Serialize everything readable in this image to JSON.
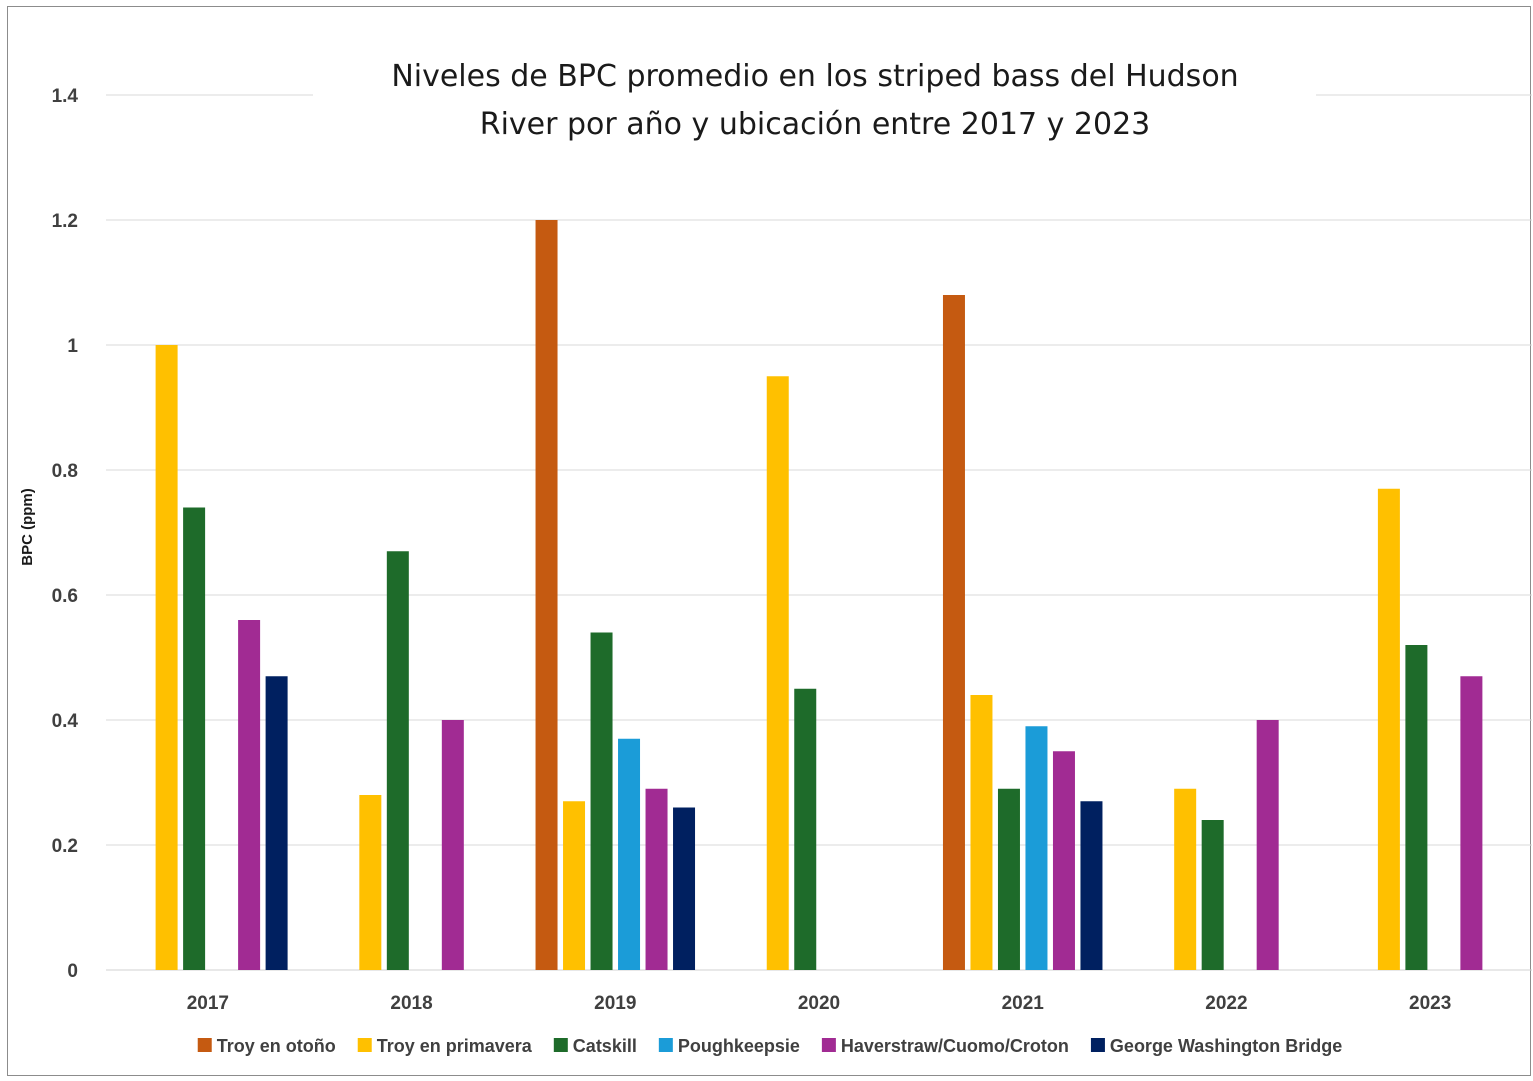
{
  "chart_data": {
    "type": "bar",
    "title": "Niveles de BPC promedio en los striped bass del Hudson River por año y ubicación entre 2017 y 2023",
    "title_lines": [
      "Niveles de BPC promedio en los striped bass del Hudson",
      "River por año y ubicación entre 2017 y 2023"
    ],
    "xlabel": "",
    "ylabel": "BPC (ppm)",
    "ylim": [
      0,
      1.4
    ],
    "yticks": [
      "0",
      "0.2",
      "0.4",
      "0.6",
      "0.8",
      "1",
      "1.2",
      "1.4"
    ],
    "grid": true,
    "legend_position": "bottom",
    "categories": [
      "2017",
      "2018",
      "2019",
      "2020",
      "2021",
      "2022",
      "2023"
    ],
    "series": [
      {
        "name": "Troy en otoño",
        "color": "#C55A11",
        "values": [
          null,
          null,
          1.2,
          null,
          1.08,
          null,
          null
        ]
      },
      {
        "name": "Troy en primavera",
        "color": "#FFC000",
        "values": [
          1.0,
          0.28,
          0.27,
          0.95,
          0.44,
          0.29,
          0.77
        ]
      },
      {
        "name": "Catskill",
        "color": "#1E6B2A",
        "values": [
          0.74,
          0.67,
          0.54,
          0.45,
          0.29,
          0.24,
          0.52
        ]
      },
      {
        "name": "Poughkeepsie",
        "color": "#1B9CD8",
        "values": [
          null,
          null,
          0.37,
          null,
          0.39,
          null,
          null
        ]
      },
      {
        "name": "Haverstraw/Cuomo/Croton",
        "color": "#A12B93",
        "values": [
          0.56,
          0.4,
          0.29,
          null,
          0.35,
          0.4,
          0.47
        ]
      },
      {
        "name": "George Washington Bridge",
        "color": "#002060",
        "values": [
          0.47,
          null,
          0.26,
          null,
          0.27,
          null,
          null
        ]
      }
    ]
  }
}
